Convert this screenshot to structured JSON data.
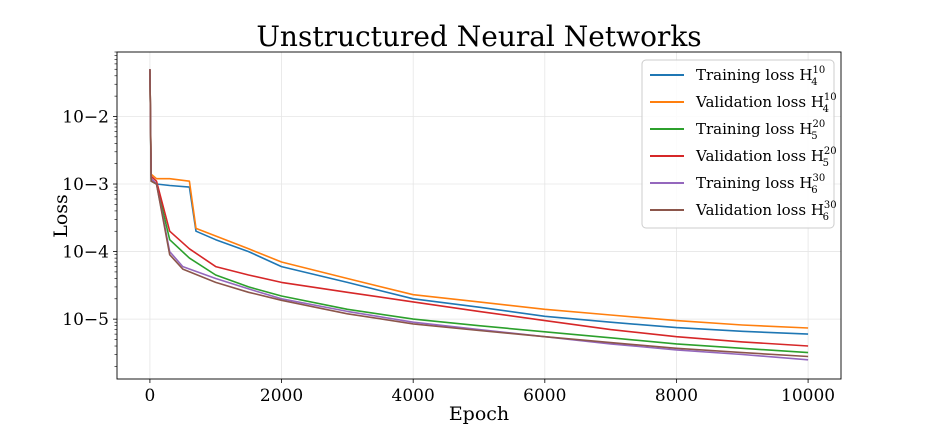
{
  "chart_data": {
    "type": "line",
    "title": "Unstructured Neural Networks",
    "xlabel": "Epoch",
    "ylabel": "Loss",
    "yscale": "log",
    "xlim": [
      -500,
      10500
    ],
    "ylim": [
      1.3e-06,
      0.09
    ],
    "xticks": [
      0,
      2000,
      4000,
      6000,
      8000,
      10000
    ],
    "xtick_labels": [
      "0",
      "2000",
      "4000",
      "6000",
      "8000",
      "10000"
    ],
    "yticks": [
      1e-05,
      0.0001,
      0.001,
      0.01
    ],
    "ytick_labels": [
      "10−5",
      "10−4",
      "10−3",
      "10−2"
    ],
    "grid": true,
    "legend_position": "upper right",
    "series": [
      {
        "name": "Training loss H₄¹⁰",
        "legend_main": "Training loss H",
        "legend_sub": "4",
        "legend_sup": "10",
        "color": "#1f77b4",
        "x": [
          0,
          20,
          100,
          300,
          600,
          700,
          1000,
          1500,
          2000,
          3000,
          4000,
          5000,
          6000,
          7000,
          8000,
          9000,
          10000
        ],
        "y": [
          0.05,
          0.0012,
          0.001,
          0.00095,
          0.0009,
          0.0002,
          0.00015,
          0.0001,
          6e-05,
          3.5e-05,
          2e-05,
          1.5e-05,
          1.1e-05,
          9e-06,
          7.5e-06,
          6.6e-06,
          6e-06
        ]
      },
      {
        "name": "Validation loss H₄¹⁰",
        "legend_main": "Validation loss H",
        "legend_sub": "4",
        "legend_sup": "10",
        "color": "#ff7f0e",
        "x": [
          0,
          20,
          100,
          300,
          600,
          700,
          1000,
          1500,
          2000,
          3000,
          4000,
          5000,
          6000,
          7000,
          8000,
          9000,
          10000
        ],
        "y": [
          0.05,
          0.0014,
          0.0012,
          0.0012,
          0.0011,
          0.00022,
          0.00017,
          0.00011,
          7e-05,
          4e-05,
          2.3e-05,
          1.8e-05,
          1.4e-05,
          1.15e-05,
          9.5e-06,
          8.2e-06,
          7.4e-06
        ]
      },
      {
        "name": "Training loss H₅²⁰",
        "legend_main": "Training loss H",
        "legend_sub": "5",
        "legend_sup": "20",
        "color": "#2ca02c",
        "x": [
          0,
          20,
          100,
          300,
          600,
          1000,
          1500,
          2000,
          3000,
          4000,
          5000,
          6000,
          7000,
          8000,
          9000,
          10000
        ],
        "y": [
          0.05,
          0.0011,
          0.001,
          0.00015,
          8e-05,
          4.5e-05,
          3e-05,
          2.2e-05,
          1.4e-05,
          1e-05,
          8e-06,
          6.5e-06,
          5.3e-06,
          4.3e-06,
          3.7e-06,
          3.2e-06
        ]
      },
      {
        "name": "Validation loss H₅²⁰",
        "legend_main": "Validation loss H",
        "legend_sub": "5",
        "legend_sup": "20",
        "color": "#d62728",
        "x": [
          0,
          20,
          100,
          300,
          600,
          1000,
          1500,
          2000,
          3000,
          4000,
          5000,
          6000,
          7000,
          8000,
          9000,
          10000
        ],
        "y": [
          0.05,
          0.0013,
          0.0011,
          0.0002,
          0.00011,
          6e-05,
          4.5e-05,
          3.5e-05,
          2.5e-05,
          1.8e-05,
          1.3e-05,
          9.5e-06,
          7e-06,
          5.5e-06,
          4.6e-06,
          4e-06
        ]
      },
      {
        "name": "Training loss H₆³⁰",
        "legend_main": "Training loss H",
        "legend_sub": "6",
        "legend_sup": "30",
        "color": "#9467bd",
        "x": [
          0,
          20,
          100,
          300,
          500,
          1000,
          1500,
          2000,
          3000,
          4000,
          5000,
          6000,
          7000,
          8000,
          9000,
          10000
        ],
        "y": [
          0.05,
          0.0012,
          0.001,
          0.0001,
          6e-05,
          4e-05,
          2.8e-05,
          2e-05,
          1.3e-05,
          9e-06,
          7e-06,
          5.5e-06,
          4.3e-06,
          3.5e-06,
          3e-06,
          2.5e-06
        ]
      },
      {
        "name": "Validation loss H₆³⁰",
        "legend_main": "Validation loss H",
        "legend_sub": "6",
        "legend_sup": "30",
        "color": "#8c564b",
        "x": [
          0,
          20,
          100,
          300,
          500,
          1000,
          1500,
          2000,
          3000,
          4000,
          5000,
          6000,
          7000,
          8000,
          9000,
          10000
        ],
        "y": [
          0.05,
          0.0011,
          0.001,
          9e-05,
          5.5e-05,
          3.5e-05,
          2.5e-05,
          1.9e-05,
          1.2e-05,
          8.5e-06,
          6.8e-06,
          5.5e-06,
          4.5e-06,
          3.7e-06,
          3.2e-06,
          2.8e-06
        ]
      }
    ]
  }
}
